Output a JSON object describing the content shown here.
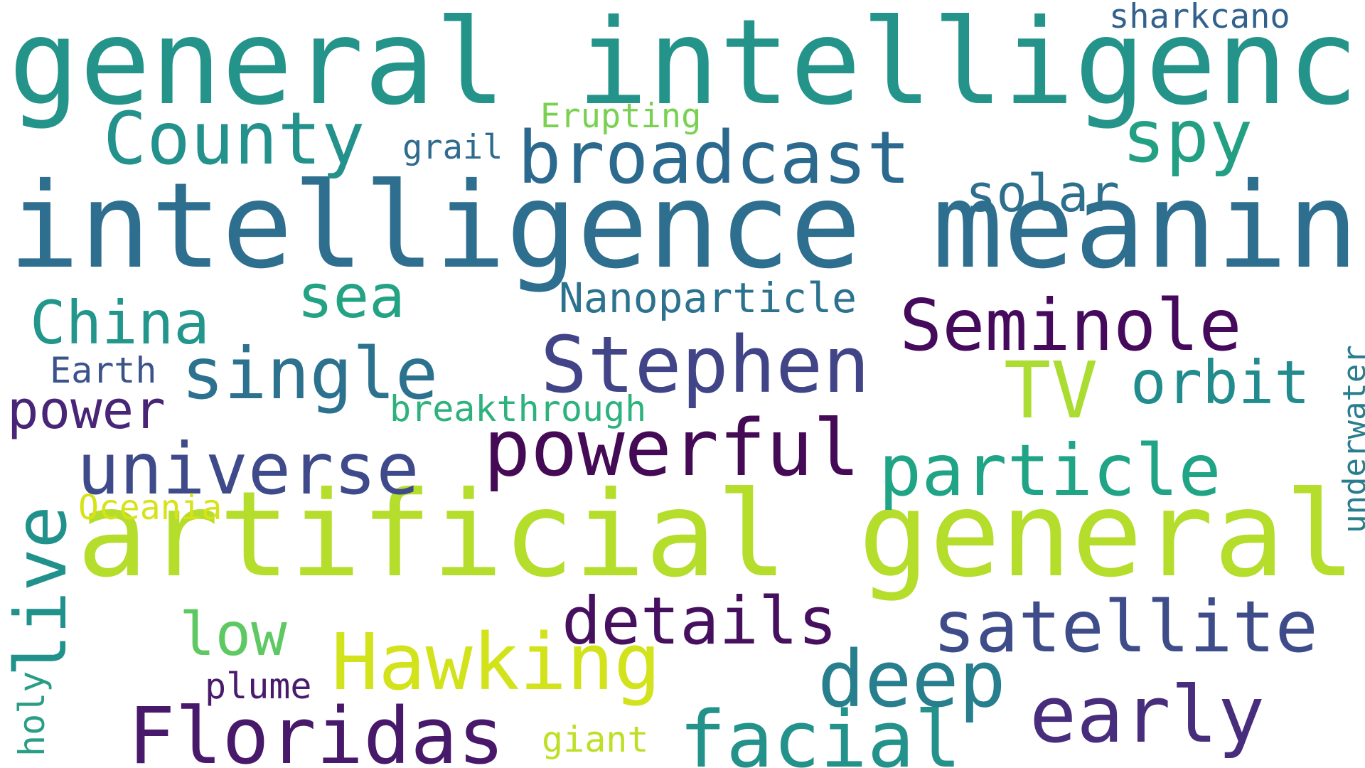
{
  "words": [
    {
      "id": "general-intelligence",
      "text": "general intelligence",
      "color": "#24948a"
    },
    {
      "id": "intelligence-meaning",
      "text": "intelligence meaning",
      "color": "#2e6e8e"
    },
    {
      "id": "artificial-general",
      "text": "artificial general",
      "color": "#b5dd2b"
    },
    {
      "id": "county",
      "text": "County",
      "color": "#23918c"
    },
    {
      "id": "broadcast",
      "text": "broadcast",
      "color": "#2b6a8e"
    },
    {
      "id": "spy",
      "text": "spy",
      "color": "#23a083"
    },
    {
      "id": "sharkcano",
      "text": "sharkcano",
      "color": "#31618d"
    },
    {
      "id": "erupting",
      "text": "Erupting",
      "color": "#7ad151"
    },
    {
      "id": "grail",
      "text": "grail",
      "color": "#2f6b8e"
    },
    {
      "id": "solar",
      "text": "solar",
      "color": "#2f6f8e"
    },
    {
      "id": "china",
      "text": "China",
      "color": "#22968b"
    },
    {
      "id": "sea",
      "text": "sea",
      "color": "#23a284"
    },
    {
      "id": "nanoparticle",
      "text": "Nanoparticle",
      "color": "#2c728e"
    },
    {
      "id": "seminole",
      "text": "Seminole",
      "color": "#460a5d"
    },
    {
      "id": "single",
      "text": "single",
      "color": "#2c728e"
    },
    {
      "id": "stephen",
      "text": "Stephen",
      "color": "#414487"
    },
    {
      "id": "earth",
      "text": "Earth",
      "color": "#3b528b"
    },
    {
      "id": "tv",
      "text": "TV",
      "color": "#aadc32"
    },
    {
      "id": "orbit",
      "text": "orbit",
      "color": "#228b8d"
    },
    {
      "id": "power",
      "text": "power",
      "color": "#482576"
    },
    {
      "id": "breakthrough",
      "text": "breakthrough",
      "color": "#2db27d"
    },
    {
      "id": "underwater",
      "text": "underwater",
      "color": "#287d8e"
    },
    {
      "id": "universe",
      "text": "universe",
      "color": "#3e4a89"
    },
    {
      "id": "powerful",
      "text": "powerful",
      "color": "#440a55"
    },
    {
      "id": "particle",
      "text": "particle",
      "color": "#20a486"
    },
    {
      "id": "live",
      "text": "live",
      "color": "#21918c"
    },
    {
      "id": "oceania",
      "text": "Oceania",
      "color": "#d8e219"
    },
    {
      "id": "details",
      "text": "details",
      "color": "#46105e"
    },
    {
      "id": "satellite",
      "text": "satellite",
      "color": "#3e4c8a"
    },
    {
      "id": "low",
      "text": "low",
      "color": "#5ec962"
    },
    {
      "id": "hawking",
      "text": "Hawking",
      "color": "#d2e21b"
    },
    {
      "id": "deep",
      "text": "deep",
      "color": "#277f8e"
    },
    {
      "id": "holy",
      "text": "holy",
      "color": "#2a9d86"
    },
    {
      "id": "plume",
      "text": "plume",
      "color": "#481b6d"
    },
    {
      "id": "early",
      "text": "early",
      "color": "#472d7b"
    },
    {
      "id": "floridas",
      "text": "Floridas",
      "color": "#48186a"
    },
    {
      "id": "giant",
      "text": "giant",
      "color": "#bddf26"
    },
    {
      "id": "facial",
      "text": "facial",
      "color": "#23928a"
    }
  ]
}
